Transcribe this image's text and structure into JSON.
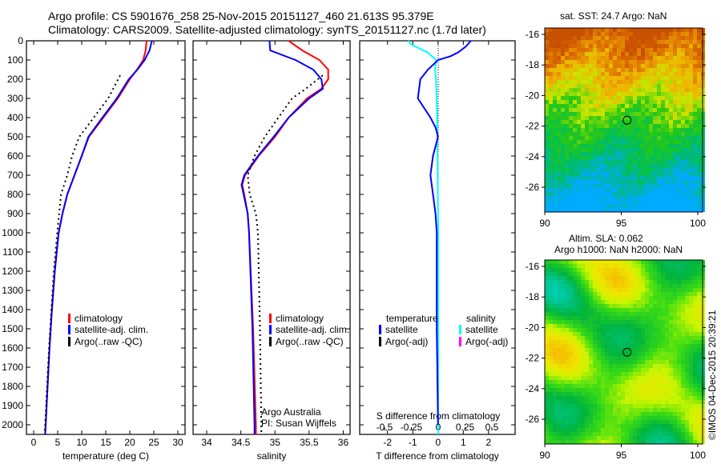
{
  "header": {
    "line1": "Argo profile: CS 5901676_258 25-Nov-2015 20151127_460 21.613S 95.379E",
    "line2": "Climatology: CARS2009. Satellite-adjusted climatology: synTS_20151127.nc (1.7d later)"
  },
  "colors": {
    "climatology": "#ff0000",
    "satellite": "#0000ff",
    "argo": "#000000",
    "sal_satellite": "#00ffff",
    "sal_argo": "#ff00ff"
  },
  "chart_data": [
    {
      "type": "line",
      "title": "",
      "xlabel": "temperature (deg C)",
      "ylabel": "",
      "xlim": [
        -1.5,
        31.5
      ],
      "ylim": [
        0,
        2050
      ],
      "yinvert": true,
      "xticks": [
        "0",
        "5",
        "10",
        "15",
        "20",
        "25",
        "30"
      ],
      "xtick_values": [
        0,
        5,
        10,
        15,
        20,
        25,
        30
      ],
      "yticks": [
        "0",
        "100",
        "200",
        "300",
        "400",
        "500",
        "600",
        "700",
        "800",
        "900",
        "1000",
        "1100",
        "1200",
        "1300",
        "1400",
        "1500",
        "1600",
        "1700",
        "1800",
        "1900",
        "2000"
      ],
      "legend": [
        "climatology",
        "satellite-adj. clim.",
        "Argo(..raw -QC)"
      ],
      "series": [
        {
          "name": "climatology",
          "style": "solid",
          "color": "#ff0000",
          "depth": [
            0,
            50,
            100,
            150,
            200,
            300,
            400,
            500,
            600,
            700,
            800,
            900,
            1000,
            1200,
            1400,
            1600,
            1800,
            2000,
            2050
          ],
          "values": [
            23.5,
            23.3,
            22.8,
            21.5,
            20,
            17.5,
            14.5,
            11.5,
            10,
            8.5,
            7,
            6,
            5.2,
            4.4,
            3.8,
            3.3,
            2.9,
            2.5,
            2.4
          ]
        },
        {
          "name": "satellite-adj. clim.",
          "style": "solid",
          "color": "#0000ff",
          "depth": [
            0,
            50,
            100,
            150,
            200,
            300,
            400,
            500,
            600,
            700,
            800,
            900,
            1000,
            1200,
            1400,
            1600,
            1800,
            2000,
            2050
          ],
          "values": [
            24.6,
            24.1,
            23.1,
            21.6,
            19.8,
            17.3,
            14.3,
            11.4,
            10,
            8.5,
            7,
            6,
            5.2,
            4.4,
            3.8,
            3.3,
            2.9,
            2.5,
            2.4
          ]
        },
        {
          "name": "Argo(..raw -QC)",
          "style": "dotted",
          "color": "#000000",
          "depth": [
            180,
            300,
            400,
            500,
            600,
            700,
            800,
            900,
            1000,
            1200,
            1400,
            1600,
            1800,
            2000,
            2050
          ],
          "values": [
            18,
            15.5,
            12.5,
            9.5,
            8,
            7,
            5.7,
            5.3,
            4.9,
            4.2,
            3.7,
            3.2,
            2.8,
            2.4,
            2.3
          ]
        }
      ],
      "annotations": []
    },
    {
      "type": "line",
      "xlabel": "salinity",
      "xlim": [
        33.8,
        36.1
      ],
      "ylim": [
        0,
        2050
      ],
      "yinvert": true,
      "xticks": [
        "34",
        "34.5",
        "35",
        "35.5",
        "36"
      ],
      "xtick_values": [
        34,
        34.5,
        35,
        35.5,
        36
      ],
      "legend": [
        "climatology",
        "satellite-adj. clim.",
        "Argo(..raw -QC)"
      ],
      "series": [
        {
          "name": "climatology",
          "style": "solid",
          "color": "#ff0000",
          "depth": [
            0,
            50,
            100,
            150,
            200,
            250,
            300,
            400,
            500,
            600,
            700,
            750,
            800,
            900,
            1000,
            1500,
            2000,
            2050
          ],
          "values": [
            35.2,
            35.4,
            35.65,
            35.78,
            35.78,
            35.68,
            35.47,
            35.2,
            35.0,
            34.76,
            34.56,
            34.52,
            34.55,
            34.6,
            34.62,
            34.68,
            34.72,
            34.72
          ]
        },
        {
          "name": "satellite-adj. clim.",
          "style": "solid",
          "color": "#0000ff",
          "depth": [
            0,
            50,
            100,
            150,
            200,
            250,
            300,
            400,
            500,
            600,
            700,
            750,
            800,
            900,
            1000,
            1500,
            2000,
            2050
          ],
          "values": [
            34.92,
            34.93,
            35.3,
            35.56,
            35.68,
            35.7,
            35.5,
            35.2,
            34.98,
            34.75,
            34.55,
            34.51,
            34.54,
            34.6,
            34.62,
            34.67,
            34.7,
            34.7
          ]
        },
        {
          "name": "Argo(..raw -QC)",
          "style": "dotted",
          "color": "#000000",
          "depth": [
            180,
            250,
            300,
            400,
            500,
            600,
            700,
            800,
            900,
            1000,
            1500,
            2000,
            2050
          ],
          "values": [
            35.7,
            35.45,
            35.25,
            35.05,
            34.85,
            34.7,
            34.6,
            34.63,
            34.72,
            34.75,
            34.78,
            34.8,
            34.8
          ]
        }
      ],
      "annotations": [
        "Argo Australia",
        "PI: Susan Wijffels"
      ]
    },
    {
      "type": "line",
      "xlabel": "T difference from climatology",
      "xlabel_top": "S difference from climatology",
      "xlim": [
        -3.1,
        3.05
      ],
      "ylim": [
        0,
        2050
      ],
      "yinvert": true,
      "xticks": [
        "-2",
        "-1",
        "0",
        "1",
        "2"
      ],
      "xtick_values": [
        -2,
        -1,
        0,
        1,
        2
      ],
      "sticks": [
        "-0.5",
        "-0.25",
        "0",
        "0.25",
        "0.5"
      ],
      "stick_values": [
        -0.5,
        -0.25,
        0,
        0.25,
        0.5
      ],
      "legend_headers": [
        "temperature",
        "salinity"
      ],
      "legend": [
        "satellite",
        "Argo(-adj)",
        "satellite",
        "Argo(-adj)"
      ],
      "series": [
        {
          "name": "T satellite",
          "axis": "T",
          "color": "#0000ff",
          "depth": [
            0,
            30,
            60,
            80,
            100,
            150,
            200,
            300,
            400,
            450,
            500,
            600,
            700,
            800,
            900,
            1000,
            1500,
            2000
          ],
          "values": [
            1.3,
            1.1,
            0.8,
            0.5,
            0.0,
            -0.4,
            -0.7,
            -0.8,
            -0.3,
            -0.1,
            0.0,
            -0.2,
            -0.3,
            -0.2,
            -0.1,
            -0.05,
            -0.05,
            0
          ]
        },
        {
          "name": "S satellite",
          "axis": "S",
          "color": "#00ffff",
          "depth": [
            0,
            20,
            60,
            100,
            150,
            200,
            400,
            1000,
            2000,
            2050
          ],
          "values": [
            -0.28,
            -0.25,
            -0.1,
            -0.02,
            -0.03,
            -0.02,
            -0.01,
            0,
            0,
            0
          ]
        }
      ]
    }
  ],
  "maps": [
    {
      "title": "sat. SST: 24.7 Argo: NaN",
      "xticks": [
        "90",
        "95",
        "100"
      ],
      "yticks": [
        "-16",
        "-18",
        "-20",
        "-22",
        "-24",
        "-26"
      ],
      "argo_lon": 95.379,
      "argo_lat": -21.613
    },
    {
      "title1": "Altim. SLA: 0.062",
      "title2": "Argo h1000: NaN h2000: NaN",
      "xticks": [
        "90",
        "95",
        "100"
      ],
      "yticks": [
        "-16",
        "-18",
        "-20",
        "-22",
        "-24",
        "-26"
      ],
      "argo_lon": 95.379,
      "argo_lat": -21.613
    }
  ],
  "footer": {
    "stamp": "©IMOS 04-Dec-2015 20:39:21"
  }
}
